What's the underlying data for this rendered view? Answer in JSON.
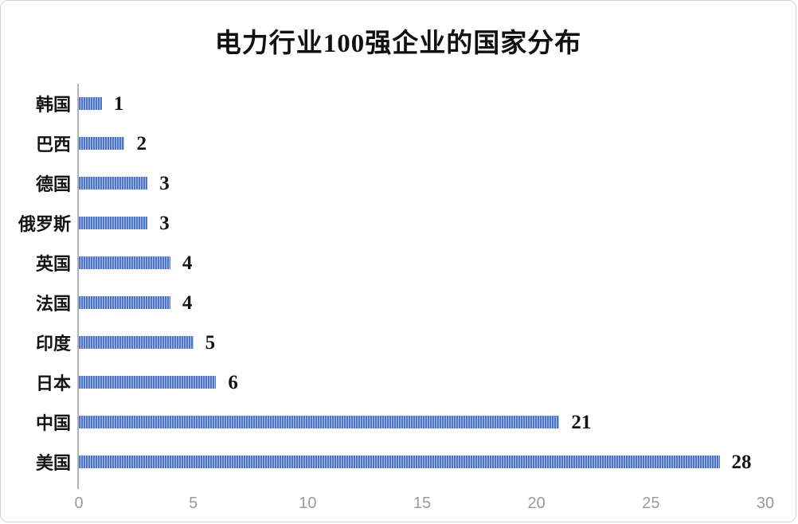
{
  "frame": {
    "background": "#ffffff",
    "border_color": "#d5d5d5"
  },
  "chart_data": {
    "type": "bar",
    "orientation": "horizontal",
    "title": "电力行业100强企业的国家分布",
    "categories": [
      "韩国",
      "巴西",
      "德国",
      "俄罗斯",
      "英国",
      "法国",
      "印度",
      "日本",
      "中国",
      "美国"
    ],
    "values": [
      1,
      2,
      3,
      3,
      4,
      4,
      5,
      6,
      21,
      28
    ],
    "xlabel": "",
    "ylabel": "",
    "xlim": [
      0,
      30
    ],
    "x_ticks": [
      0,
      5,
      10,
      15,
      20,
      25,
      30
    ],
    "grid": false,
    "legend_position": "none",
    "data_labels": true,
    "bar_fill_pattern": "vertical-stripes",
    "bar_stripe_dark_color": "#4d74c6",
    "bar_stripe_light_color": "#aec1e8",
    "axis_line_color": "#b3b3b3",
    "tick_label_color": "#9a9a9a",
    "title_color": "#111111",
    "label_color": "#141414"
  }
}
